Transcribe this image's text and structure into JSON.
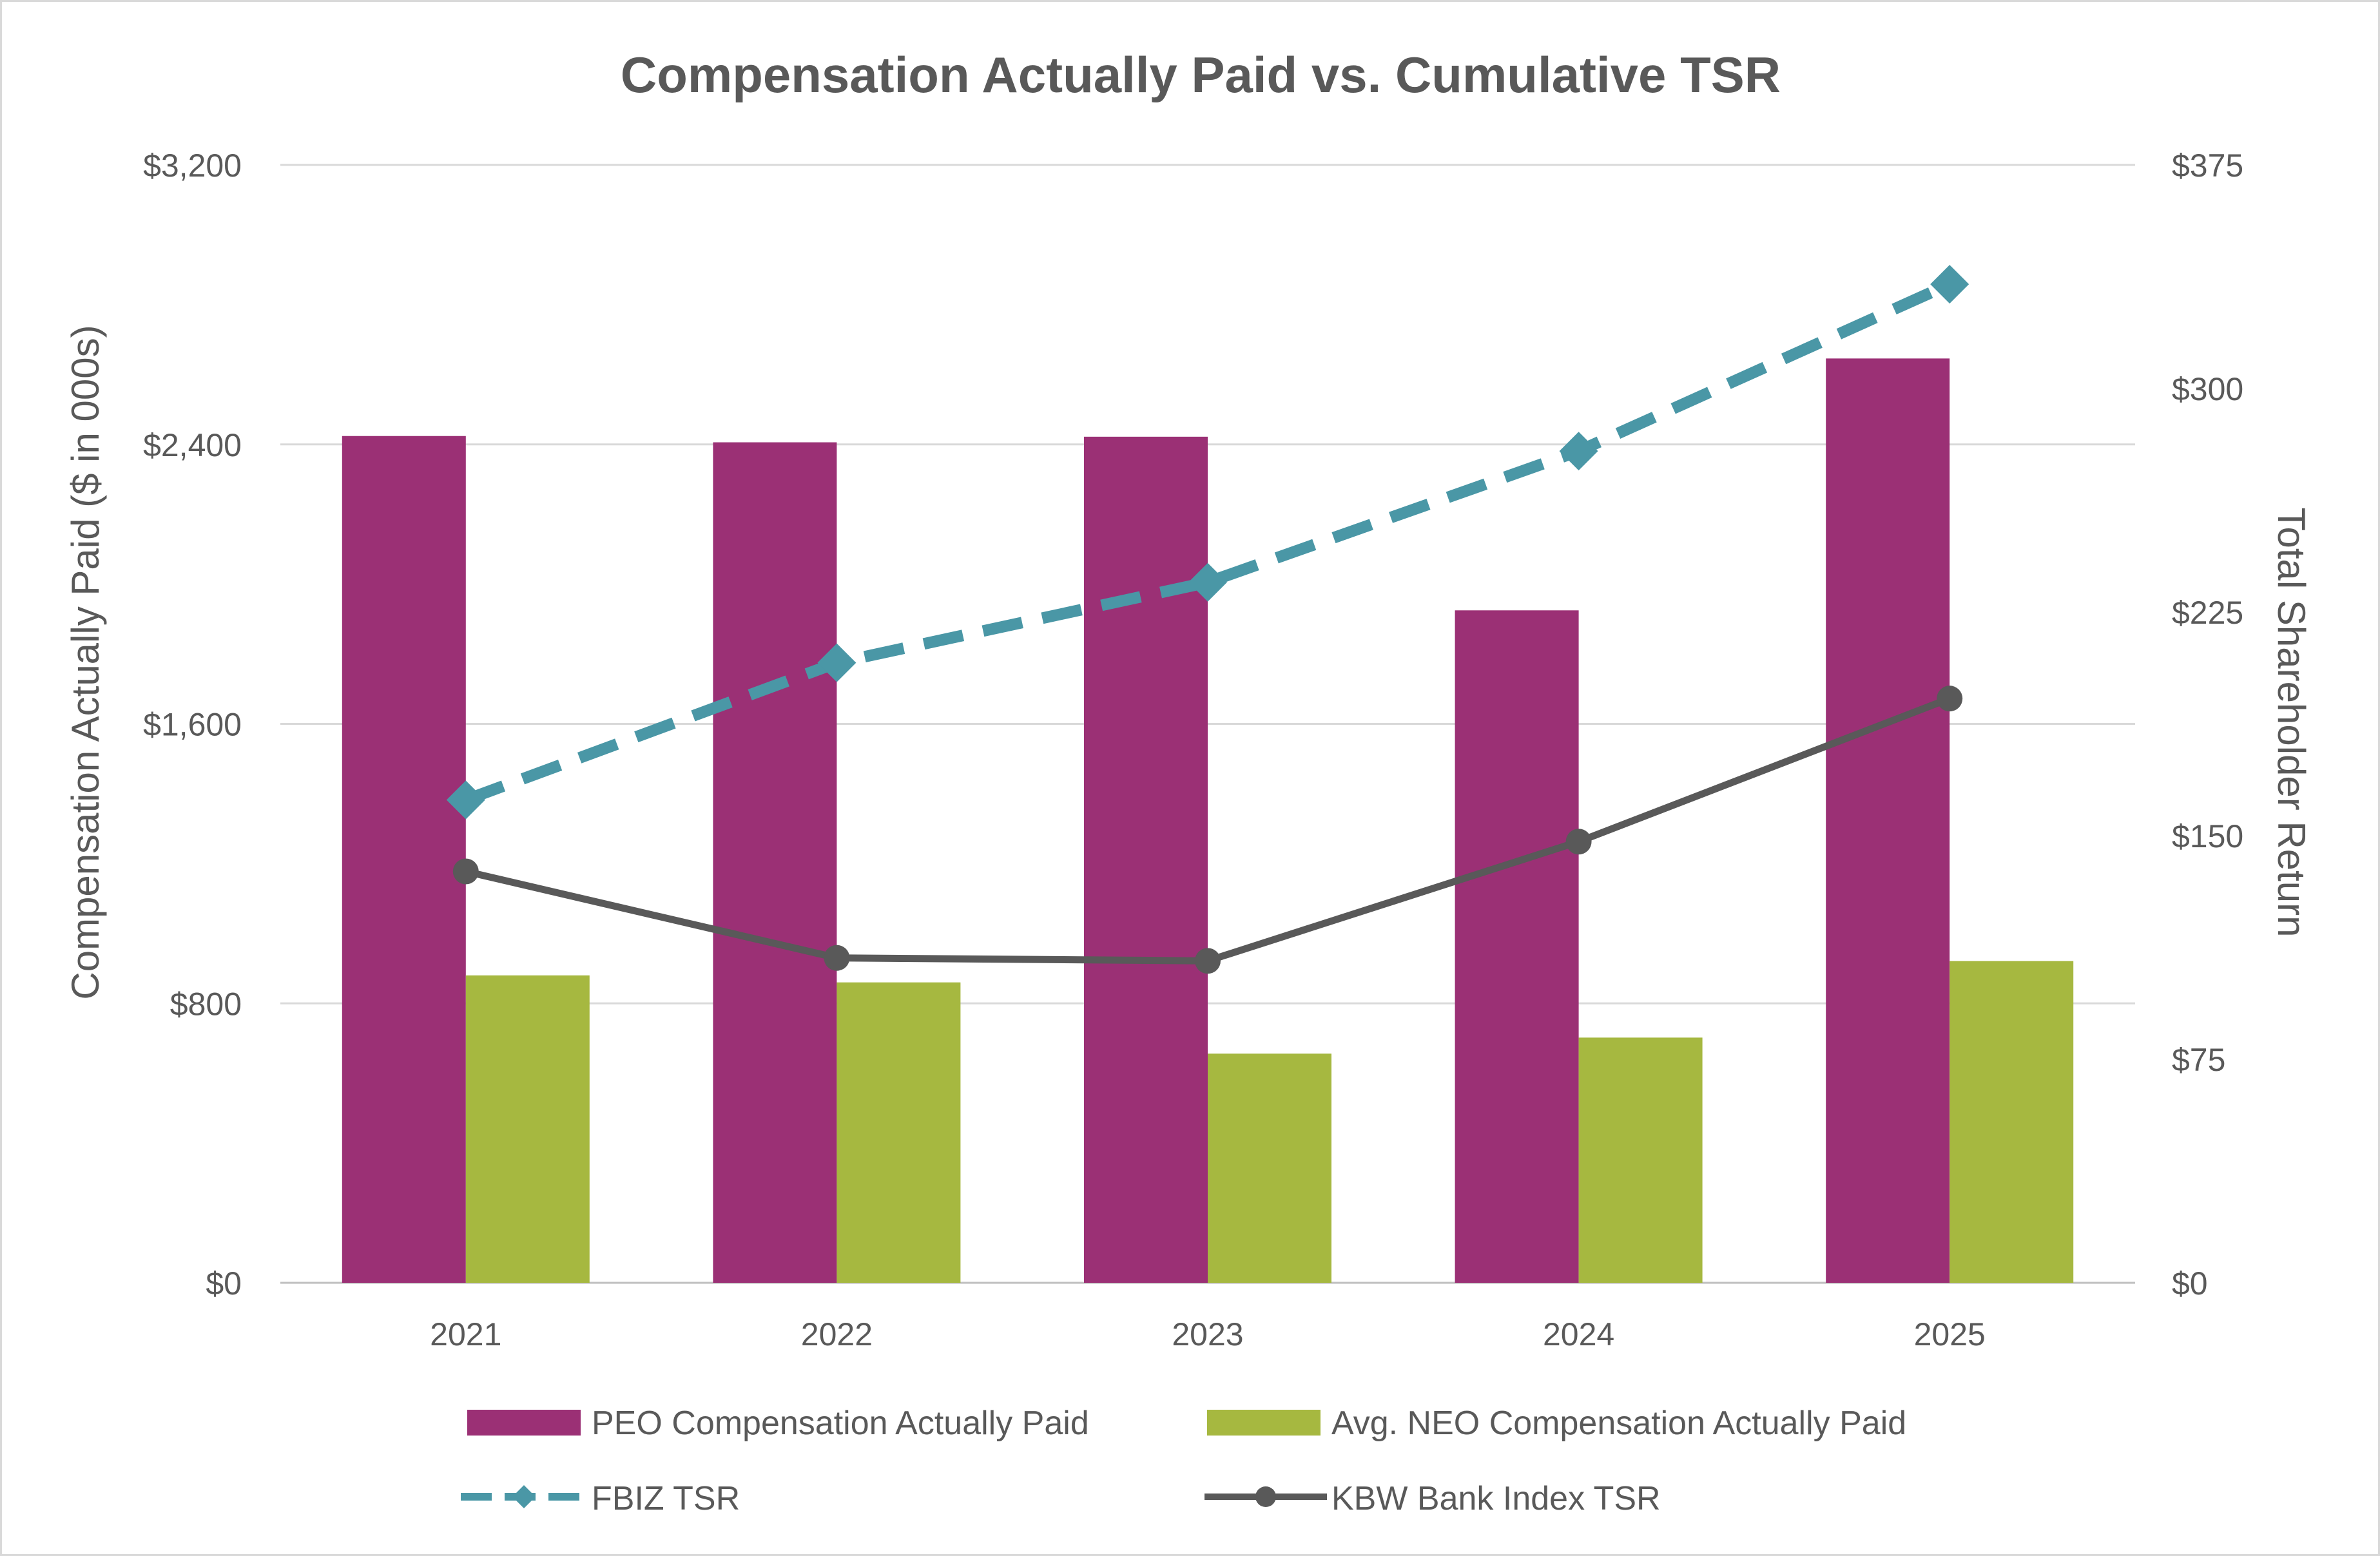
{
  "chart_data": {
    "type": "bar",
    "title": "Compensation Actually Paid vs. Cumulative TSR",
    "categories": [
      "2021",
      "2022",
      "2023",
      "2024",
      "2025"
    ],
    "y_left": {
      "label": "Compensation Actually Paid ($ in 000s)",
      "min": 0,
      "max": 3200,
      "step": 800,
      "tick_labels": [
        "$0",
        "$800",
        "$1,600",
        "$2,400",
        "$3,200"
      ]
    },
    "y_right": {
      "label": "Total Shareholder Return",
      "min": 0,
      "max": 375,
      "step": 75,
      "tick_labels": [
        "$0",
        "$75",
        "$150",
        "$225",
        "$300",
        "$375"
      ]
    },
    "bar_series": [
      {
        "name": "PEO Compensation Actually Paid",
        "color": "#9b3075",
        "values": [
          2424,
          2406,
          2422,
          1925,
          2646
        ]
      },
      {
        "name": "Avg. NEO Compensation Actually Paid",
        "color": "#a6b840",
        "values": [
          880,
          860,
          656,
          702,
          921
        ]
      }
    ],
    "line_series": [
      {
        "name": "FBIZ TSR",
        "color": "#4a97a6",
        "style": "dashed",
        "marker": "diamond",
        "values": [
          162,
          208,
          235,
          279,
          335
        ]
      },
      {
        "name": "KBW Bank Index TSR",
        "color": "#595959",
        "style": "solid",
        "marker": "circle",
        "values": [
          138,
          109,
          108,
          148,
          196
        ]
      }
    ],
    "grid": true,
    "legend_position": "bottom"
  }
}
